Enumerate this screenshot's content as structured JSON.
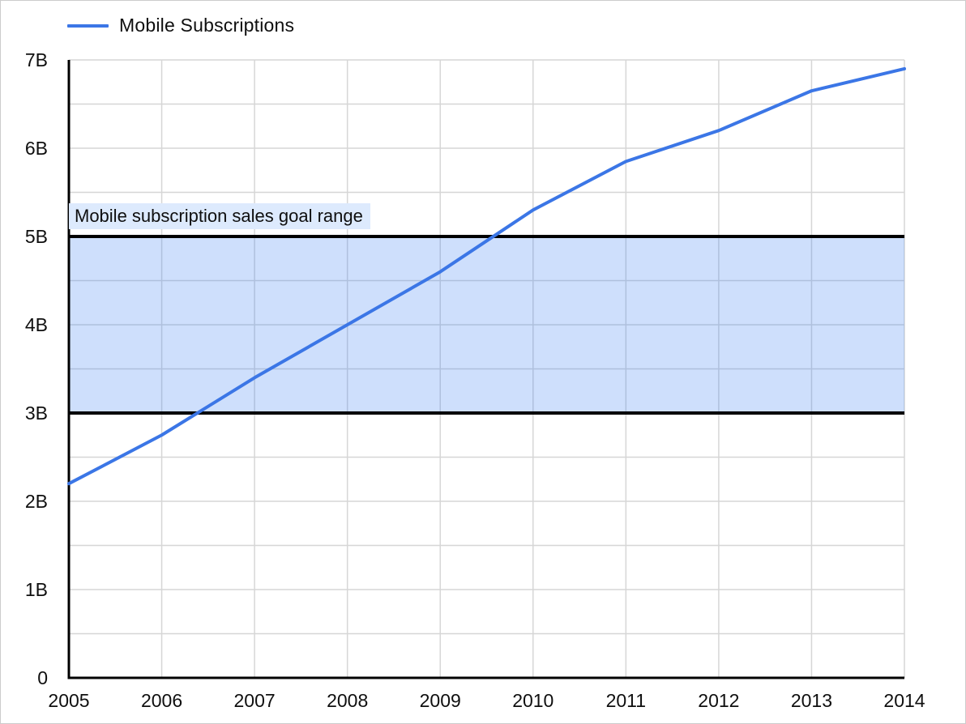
{
  "page": {
    "background": "#ffffff",
    "border_color": "#cccccc",
    "grid_color": "#d6d6d6",
    "axis_color": "#000000"
  },
  "legend": {
    "position": "top-left",
    "items": [
      {
        "label": "Mobile Subscriptions",
        "color": "#3b76e6"
      }
    ]
  },
  "chart_data": {
    "type": "line",
    "title": "",
    "xlabel": "",
    "ylabel": "",
    "x": [
      2005,
      2006,
      2007,
      2008,
      2009,
      2010,
      2011,
      2012,
      2013,
      2014
    ],
    "series": [
      {
        "name": "Mobile Subscriptions",
        "color": "#3b76e6",
        "values": [
          2.2,
          2.75,
          3.4,
          4.0,
          4.6,
          5.3,
          5.85,
          6.2,
          6.65,
          6.9
        ]
      }
    ],
    "ylim": [
      0,
      7
    ],
    "ytick_labels": [
      "0",
      "1B",
      "2B",
      "3B",
      "4B",
      "5B",
      "6B",
      "7B"
    ],
    "ytick_values": [
      0,
      1,
      2,
      3,
      4,
      5,
      6,
      7
    ],
    "minor_grid_step": 0.5,
    "grid": true,
    "legend_position": "top-left",
    "band": {
      "from": 3,
      "to": 5,
      "fill": "rgba(66,133,244,0.26)",
      "border_color": "#000000",
      "label": "Mobile subscription sales goal range",
      "label_bg": "#ddeafd"
    }
  }
}
